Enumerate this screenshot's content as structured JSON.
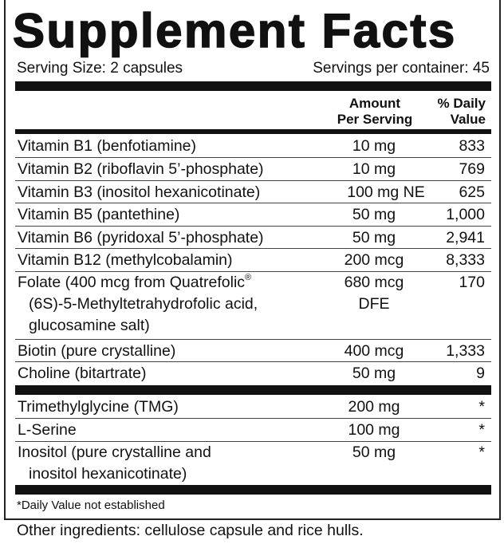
{
  "title": "Supplement Facts",
  "serving_size": "Serving Size: 2 capsules",
  "servings_per_container": "Servings per container: 45",
  "header": {
    "amount_line1": "Amount",
    "amount_line2": "Per Serving",
    "dv_line1": "% Daily",
    "dv_line2": "Value"
  },
  "rows": [
    {
      "name": "Vitamin B1 (benfotiamine)",
      "amount": "10 mg",
      "dv": "833"
    },
    {
      "name": "Vitamin B2 (riboflavin 5’-phosphate)",
      "amount": "10 mg",
      "dv": "769"
    },
    {
      "name": "Vitamin B3 (inositol hexanicotinate)",
      "amount": "100 mg NE",
      "dv": "625"
    },
    {
      "name": "Vitamin B5 (pantethine)",
      "amount": "50 mg",
      "dv": "1,000"
    },
    {
      "name": "Vitamin B6 (pyridoxal 5’-phosphate)",
      "amount": "50 mg",
      "dv": "2,941"
    },
    {
      "name": "Vitamin B12 (methylcobalamin)",
      "amount": "200 mcg",
      "dv": "8,333"
    },
    {
      "name_line1": "Folate (400 mcg from Quatrefolic",
      "name_sup": "®",
      "name_line2": "(6S)-5-Methyltetrahydrofolic acid,",
      "name_line3": "glucosamine salt)",
      "amount_line1": "680 mcg",
      "amount_line2": "DFE",
      "dv": "170"
    },
    {
      "name": "Biotin (pure crystalline)",
      "amount": "400 mcg",
      "dv": "1,333"
    },
    {
      "name": "Choline (bitartrate)",
      "amount": "50 mg",
      "dv": "9"
    }
  ],
  "other_rows": [
    {
      "name": "Trimethylglycine (TMG)",
      "amount": "200 mg",
      "dv": "*"
    },
    {
      "name": "L-Serine",
      "amount": "100 mg",
      "dv": "*"
    },
    {
      "name_line1": "Inositol (pure crystalline and",
      "name_line2": "inositol hexanicotinate)",
      "amount": "50 mg",
      "dv": "*"
    }
  ],
  "footnote": "*Daily Value not established",
  "other_ingredients": "Other ingredients: cellulose capsule and rice hulls."
}
